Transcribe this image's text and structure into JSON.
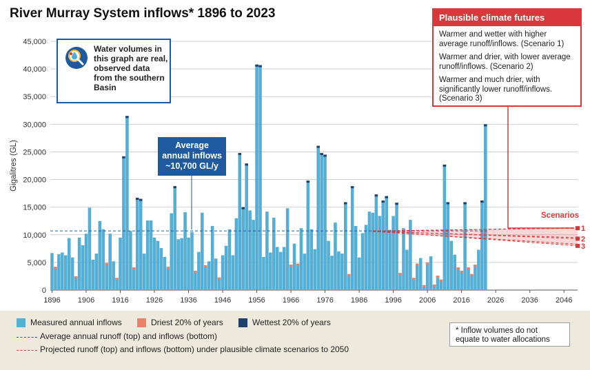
{
  "title": "River Murray System inflows* 1896 to 2023",
  "info_box": "Water volumes in this graph are real, observed data from the southern Basin",
  "average_box": [
    "Average",
    "annual inflows",
    "~10,700 GL/y"
  ],
  "climate_box": {
    "heading": "Plausible climate futures",
    "scenarios": [
      "Warmer and wetter with higher average runoff/inflows. (Scenario 1)",
      "Warmer and drier, with lower average runoff/inflows. (Scenario 2)",
      "Warmer and much drier, with significantly lower runoff/inflows. (Scenario 3)"
    ]
  },
  "scenarios_label": "Scenarios",
  "legend": {
    "measured": "Measured annual inflows",
    "driest": "Driest 20% of years",
    "wettest": "Wettest 20% of years",
    "average_line": "Average annual runoff (top) and inflows (bottom)",
    "projected_line": "Projected runoff (top) and inflows (bottom) under plausible climate scenarios to 2050"
  },
  "note": "* Inflow volumes do not equate to water allocations",
  "colors": {
    "measured": "#55aed3",
    "driest": "#e8836b",
    "wettest": "#1f3f6e",
    "average": "#1f5aa0",
    "scenario": "#d8383b"
  },
  "chart_data": {
    "type": "bar",
    "ylabel": "Gigalitres (GL)",
    "ylim": [
      0,
      45000
    ],
    "yticks": [
      0,
      5000,
      10000,
      15000,
      20000,
      25000,
      30000,
      35000,
      40000,
      45000
    ],
    "ytick_labels": [
      "0",
      "5,000",
      "10,000",
      "15,000",
      "20,000",
      "25,000",
      "30,000",
      "35,000",
      "40,000",
      "45,000"
    ],
    "xlim": [
      1895.5,
      2050
    ],
    "xticks": [
      1896,
      1906,
      1916,
      1926,
      1936,
      1946,
      1956,
      1966,
      1976,
      1986,
      1996,
      2006,
      2016,
      2026,
      2036,
      2046
    ],
    "series": [
      {
        "x": [
          1896,
          1897,
          1898,
          1899,
          1900,
          1901,
          1902,
          1903,
          1904,
          1905,
          1906,
          1907,
          1908,
          1909,
          1910,
          1911,
          1912,
          1913,
          1914,
          1915,
          1916,
          1917,
          1918,
          1919,
          1920,
          1921,
          1922,
          1923,
          1924,
          1925,
          1926,
          1927,
          1928,
          1929,
          1930,
          1931,
          1932,
          1933,
          1934,
          1935,
          1936,
          1937,
          1938,
          1939,
          1940,
          1941,
          1942,
          1943,
          1944,
          1945,
          1946,
          1947,
          1948,
          1949,
          1950,
          1951,
          1952,
          1953,
          1954,
          1955,
          1956,
          1957,
          1958,
          1959,
          1960,
          1961,
          1962,
          1963,
          1964,
          1965,
          1966,
          1967,
          1968,
          1969,
          1970,
          1971,
          1972,
          1973,
          1974,
          1975,
          1976,
          1977,
          1978,
          1979,
          1980,
          1981,
          1982,
          1983,
          1984,
          1985,
          1986,
          1987,
          1988,
          1989,
          1990,
          1991,
          1992,
          1993,
          1994,
          1995,
          1996,
          1997,
          1998,
          1999,
          2000,
          2001,
          2002,
          2003,
          2004,
          2005,
          2006,
          2007,
          2008,
          2009,
          2010,
          2011,
          2012,
          2013,
          2014,
          2015,
          2016,
          2017,
          2018,
          2019,
          2020,
          2021,
          2022,
          2023
        ],
        "values": [
          6700,
          4200,
          6500,
          6800,
          6300,
          9400,
          5900,
          2500,
          9500,
          8100,
          10200,
          14900,
          5500,
          6600,
          12500,
          11000,
          4900,
          10200,
          5200,
          2200,
          9500,
          24200,
          31500,
          10700,
          4100,
          16700,
          16500,
          6600,
          12600,
          12600,
          9500,
          8900,
          7600,
          6000,
          4200,
          13900,
          18800,
          9200,
          9400,
          14100,
          9500,
          10500,
          3500,
          6900,
          14000,
          4500,
          5200,
          11600,
          5700,
          2300,
          6300,
          8000,
          11000,
          6300,
          13000,
          24800,
          15000,
          22900,
          14400,
          12700,
          40800,
          40700,
          6000,
          14200,
          6800,
          13100,
          7800,
          6900,
          7800,
          14800,
          4600,
          8400,
          4800,
          11200,
          6600,
          19800,
          11000,
          7400,
          26100,
          24800,
          24500,
          8900,
          6200,
          12200,
          7000,
          6600,
          15900,
          2900,
          18800,
          11600,
          5900,
          10300,
          11800,
          14200,
          14000,
          17300,
          13400,
          16200,
          17000,
          10900,
          13400,
          15800,
          3100,
          11200,
          7300,
          12700,
          2200,
          4800,
          5800,
          900,
          5000,
          6100,
          1000,
          2600,
          1900,
          22700,
          15900,
          8900,
          6400,
          4100,
          3500,
          15900,
          4100,
          2900,
          4600,
          7300,
          16200,
          30000
        ]
      }
    ],
    "average": 10700,
    "scenario_projection": {
      "x": [
        1990,
        2050
      ],
      "runoff": [
        {
          "start": 10700,
          "end": 11200
        },
        {
          "start": 10700,
          "end": 9300
        },
        {
          "start": 10700,
          "end": 8000
        }
      ],
      "inflows": [
        {
          "start": 10600,
          "end": 11300
        },
        {
          "start": 10600,
          "end": 9500
        },
        {
          "start": 10600,
          "end": 8300
        }
      ]
    },
    "scenario_numbers": [
      "1",
      "2",
      "3"
    ]
  }
}
